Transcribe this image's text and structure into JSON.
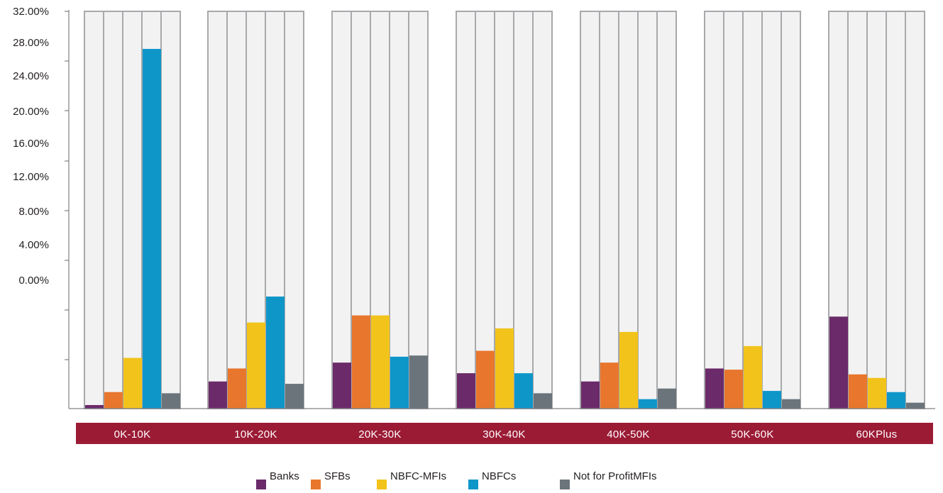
{
  "chart_data": {
    "type": "bar",
    "categories": [
      "0K-10K",
      "10K-20K",
      "20K-30K",
      "30K-40K",
      "40K-50K",
      "50K-60K",
      "60KPlus"
    ],
    "y_tick_labels": [
      "32.00%",
      "28.00%",
      "24.00%",
      "20.00%",
      "16.00%",
      "12.00%",
      "8.00%",
      "4.00%",
      "0.00%"
    ],
    "ylim": [
      0,
      32
    ],
    "series": [
      {
        "name": "Banks",
        "color": "#6b2a6a",
        "values": [
          0.3,
          2.3,
          3.9,
          3.0,
          2.3,
          3.4,
          7.8
        ]
      },
      {
        "name": "SFBs",
        "color": "#e8762c",
        "values": [
          1.4,
          3.4,
          7.9,
          4.9,
          3.9,
          3.3,
          2.9
        ]
      },
      {
        "name": "NBFC-MFIs",
        "color": "#f2c31a",
        "values": [
          4.3,
          7.3,
          7.9,
          6.8,
          6.5,
          5.3,
          2.6
        ]
      },
      {
        "name": "NBFCs",
        "color": "#0f96c9",
        "values": [
          30.5,
          9.5,
          4.4,
          3.0,
          0.8,
          1.5,
          1.4
        ]
      },
      {
        "name": "Not for ProfitMFIs",
        "color": "#6b747b",
        "values": [
          1.3,
          2.1,
          4.5,
          1.3,
          1.7,
          0.8,
          0.5
        ]
      }
    ],
    "legend_position": "bottom",
    "xlabel": "",
    "ylabel": ""
  }
}
